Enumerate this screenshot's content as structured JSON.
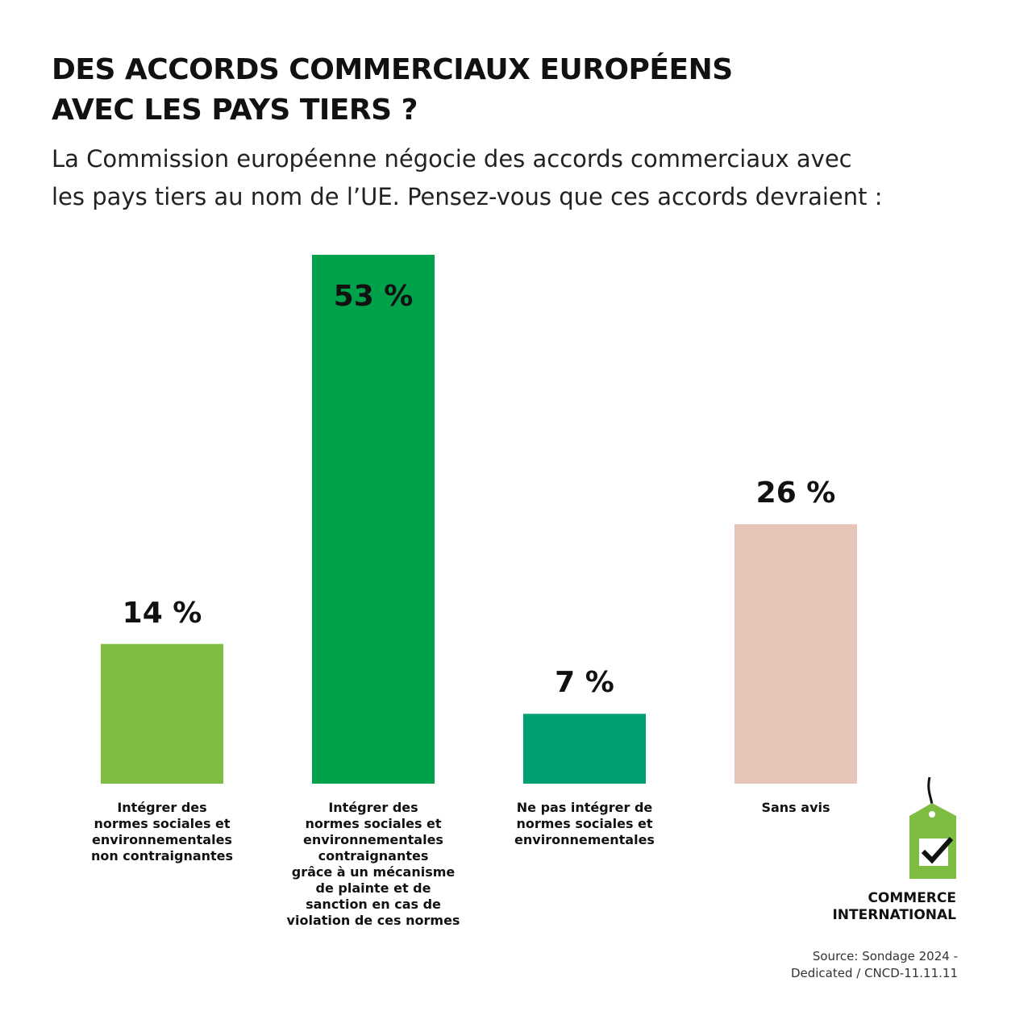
{
  "chart_data": {
    "type": "bar",
    "title": "DES ACCORDS COMMERCIAUX EUROPÉENS\nAVEC LES PAYS TIERS ?",
    "subtitle": "La Commission européenne négocie des accords commerciaux avec\nles pays tiers au nom de l’UE. Pensez-vous que ces accords devraient :",
    "categories": [
      "Intégrer des\nnormes sociales et\nenvironnementales\nnon contraignantes",
      "Intégrer des\nnormes sociales et\nenvironnementales\ncontraignantes\ngrâce à un mécanisme\nde plainte et de\nsanction en cas de\nviolation de ces normes",
      "Ne pas intégrer de\nnormes sociales et\nenvironnementales",
      "Sans avis"
    ],
    "values": [
      14,
      53,
      7,
      26
    ],
    "value_labels": [
      "14 %",
      "53 %",
      "7 %",
      "26 %"
    ],
    "colors": [
      "#7cbd42",
      "#00a14b",
      "#009e73",
      "#e6c5b8"
    ],
    "logo_text": "COMMERCE\nINTERNATIONAL",
    "source": "Source: Sondage 2024 -\nDedicated /  CNCD-11.11.11"
  }
}
